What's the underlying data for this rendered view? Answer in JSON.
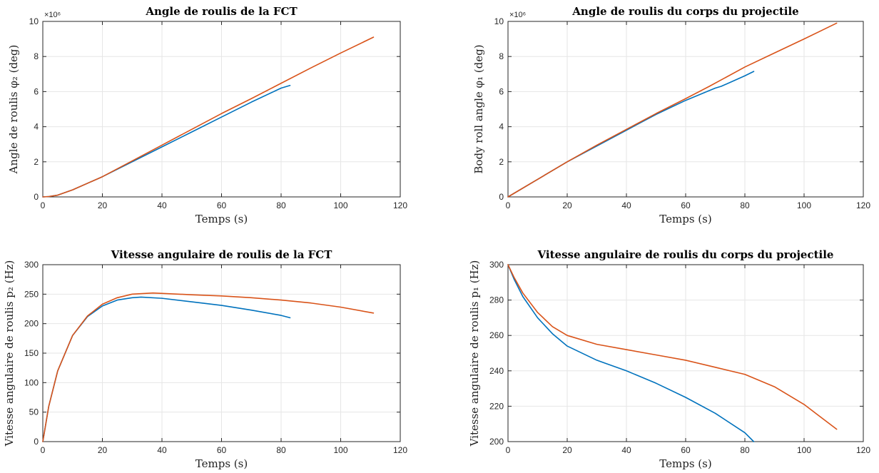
{
  "colors": {
    "series_1": "#0072BD",
    "series_2": "#D95319"
  },
  "chart_data": [
    {
      "type": "line",
      "title": "Angle de roulis de la FCT",
      "xlabel": "Temps (s)",
      "ylabel": "Angle de roulis φ₂ (deg)",
      "y_multiplier": "×10⁶",
      "xlim": [
        0,
        120
      ],
      "ylim": [
        0,
        10
      ],
      "xticks": [
        0,
        20,
        40,
        60,
        80,
        100,
        120
      ],
      "yticks": [
        0,
        2,
        4,
        6,
        8,
        10
      ],
      "grid": true,
      "series": [
        {
          "color": "#0072BD",
          "x": [
            0,
            2,
            5,
            10,
            20,
            30,
            40,
            50,
            60,
            70,
            80,
            83
          ],
          "y": [
            0,
            0.02,
            0.1,
            0.4,
            1.15,
            2.0,
            2.85,
            3.7,
            4.55,
            5.4,
            6.2,
            6.35
          ]
        },
        {
          "color": "#D95319",
          "x": [
            0,
            2,
            5,
            10,
            20,
            30,
            40,
            50,
            60,
            70,
            78,
            90,
            100,
            111
          ],
          "y": [
            0,
            0.02,
            0.1,
            0.4,
            1.15,
            2.05,
            2.95,
            3.85,
            4.75,
            5.6,
            6.3,
            7.35,
            8.2,
            9.1
          ]
        }
      ]
    },
    {
      "type": "line",
      "title": "Angle de roulis du corps du projectile",
      "xlabel": "Temps (s)",
      "ylabel": "Body roll angle φ₁ (deg)",
      "y_multiplier": "×10⁶",
      "xlim": [
        0,
        120
      ],
      "ylim": [
        0,
        10
      ],
      "xticks": [
        0,
        20,
        40,
        60,
        80,
        100,
        120
      ],
      "yticks": [
        0,
        2,
        4,
        6,
        8,
        10
      ],
      "grid": true,
      "series": [
        {
          "color": "#0072BD",
          "x": [
            0,
            10,
            20,
            30,
            40,
            50,
            60,
            70,
            72,
            80,
            83
          ],
          "y": [
            0,
            1.0,
            2.0,
            2.9,
            3.8,
            4.7,
            5.5,
            6.2,
            6.3,
            6.9,
            7.15
          ]
        },
        {
          "color": "#D95319",
          "x": [
            0,
            10,
            20,
            30,
            40,
            50,
            60,
            68,
            80,
            90,
            100,
            111
          ],
          "y": [
            0,
            1.0,
            2.0,
            2.95,
            3.85,
            4.75,
            5.6,
            6.3,
            7.4,
            8.2,
            9.0,
            9.9
          ]
        }
      ]
    },
    {
      "type": "line",
      "title": "Vitesse angulaire de roulis de la FCT",
      "xlabel": "Temps (s)",
      "ylabel": "Vitesse angulaire de roulis p₂ (Hz)",
      "xlim": [
        0,
        120
      ],
      "ylim": [
        0,
        300
      ],
      "xticks": [
        0,
        20,
        40,
        60,
        80,
        100,
        120
      ],
      "yticks": [
        0,
        50,
        100,
        150,
        200,
        250,
        300
      ],
      "grid": true,
      "series": [
        {
          "color": "#0072BD",
          "x": [
            0,
            2,
            5,
            10,
            15,
            20,
            25,
            30,
            33,
            40,
            50,
            60,
            70,
            80,
            83
          ],
          "y": [
            0,
            60,
            120,
            180,
            212,
            230,
            240,
            244,
            245,
            243,
            237,
            231,
            223,
            214,
            210
          ]
        },
        {
          "color": "#D95319",
          "x": [
            0,
            2,
            5,
            10,
            15,
            20,
            25,
            30,
            37,
            50,
            60,
            70,
            80,
            90,
            100,
            111
          ],
          "y": [
            0,
            60,
            120,
            180,
            213,
            233,
            244,
            250,
            252,
            249,
            247,
            244,
            240,
            235,
            228,
            218
          ]
        }
      ]
    },
    {
      "type": "line",
      "title": "Vitesse angulaire de roulis du corps du projectile",
      "xlabel": "Temps (s)",
      "ylabel": "Vitesse angulaire de roulis p₁ (Hz)",
      "xlim": [
        0,
        120
      ],
      "ylim": [
        200,
        300
      ],
      "xticks": [
        0,
        20,
        40,
        60,
        80,
        100,
        120
      ],
      "yticks": [
        200,
        220,
        240,
        260,
        280,
        300
      ],
      "grid": true,
      "series": [
        {
          "color": "#0072BD",
          "x": [
            0,
            2,
            5,
            10,
            15,
            20,
            30,
            40,
            50,
            60,
            70,
            80,
            83
          ],
          "y": [
            300,
            292,
            282,
            270,
            261,
            254,
            246,
            240,
            233,
            225,
            216,
            205,
            200
          ]
        },
        {
          "color": "#D95319",
          "x": [
            0,
            2,
            5,
            10,
            15,
            20,
            30,
            40,
            50,
            60,
            70,
            80,
            90,
            100,
            111
          ],
          "y": [
            300,
            293,
            284,
            273,
            265,
            260,
            255,
            252,
            249,
            246,
            242,
            238,
            231,
            221,
            207
          ]
        }
      ]
    }
  ]
}
